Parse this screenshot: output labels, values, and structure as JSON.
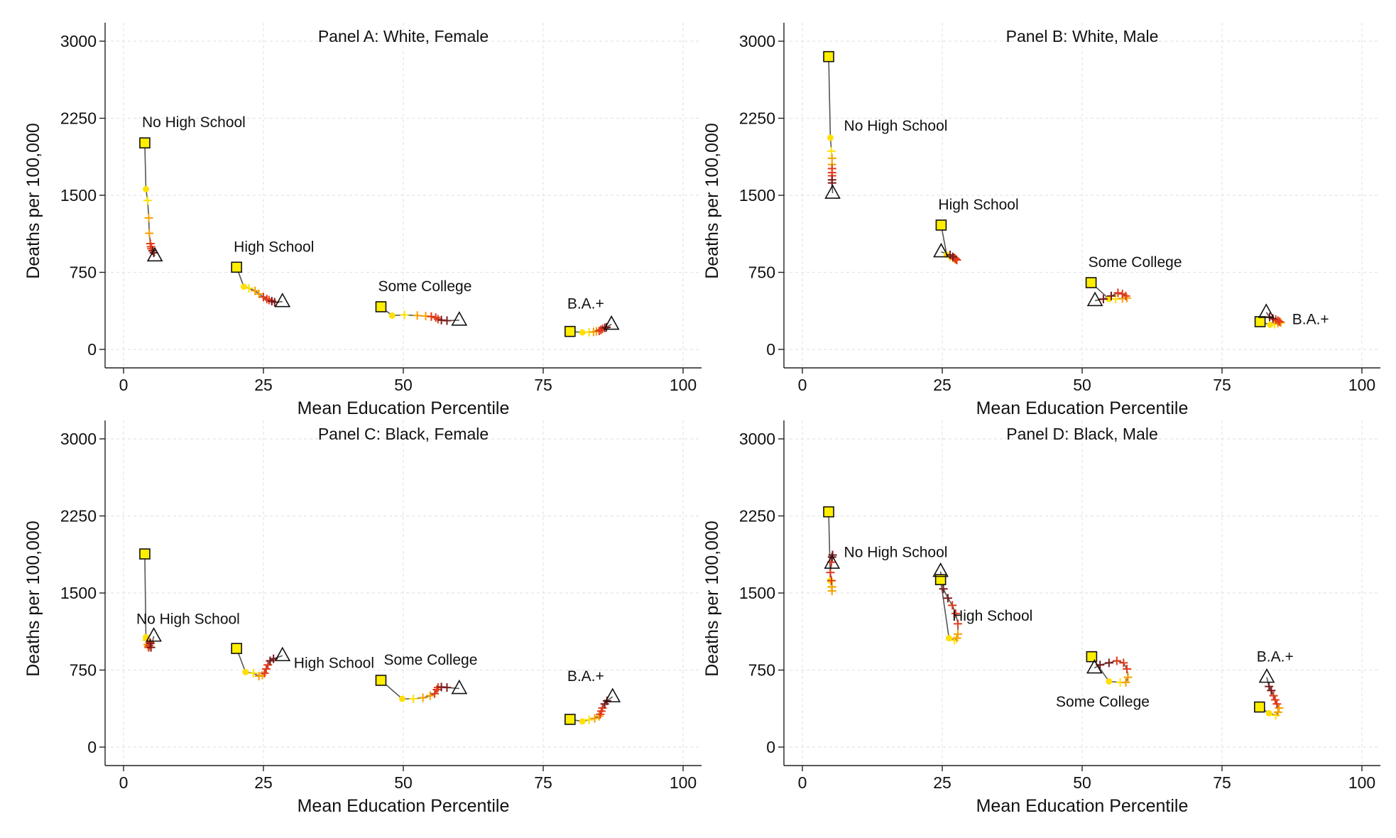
{
  "colors": {
    "start_fill": "#ffee00",
    "line": "#555555",
    "early": "#ffe000",
    "mid": "#f5a000",
    "late": "#e23a1a",
    "final": "#7a1a1a"
  },
  "chart_data": [
    {
      "type": "scatter",
      "title": "Panel A: White, Female",
      "xlabel": "Mean Education Percentile",
      "ylabel": "Deaths per 100,000",
      "xlim": [
        0,
        100
      ],
      "ylim": [
        0,
        3000
      ],
      "xticks": [
        "0",
        "25",
        "50",
        "75",
        "100"
      ],
      "yticks": [
        "0",
        "750",
        "1500",
        "2250",
        "3000"
      ],
      "grid": true,
      "series": [
        {
          "name": "No High School",
          "label_anchor": "above",
          "x": [
            3.8,
            4.0,
            4.3,
            4.5,
            4.6,
            4.8,
            4.9,
            5.0,
            5.2,
            5.4,
            5.6
          ],
          "y": [
            2010,
            1560,
            1450,
            1280,
            1130,
            1030,
            1000,
            980,
            960,
            940,
            910
          ]
        },
        {
          "name": "High School",
          "label_anchor": "above",
          "x": [
            20.2,
            21.5,
            22.4,
            23.5,
            24.2,
            25.0,
            25.6,
            26.0,
            26.5,
            27.0,
            28.4
          ],
          "y": [
            800,
            610,
            595,
            570,
            540,
            510,
            490,
            480,
            470,
            460,
            465
          ]
        },
        {
          "name": "Some College",
          "label_anchor": "above",
          "x": [
            46.0,
            48.0,
            50.2,
            52.5,
            54.0,
            55.0,
            55.8,
            56.2,
            56.8,
            57.8,
            60.0
          ],
          "y": [
            415,
            330,
            335,
            330,
            325,
            320,
            310,
            295,
            285,
            280,
            285
          ]
        },
        {
          "name": "B.A.+",
          "label_anchor": "above",
          "x": [
            79.8,
            82.0,
            83.2,
            84.0,
            84.5,
            85.0,
            85.3,
            85.6,
            86.0,
            86.3,
            87.2
          ],
          "y": [
            175,
            165,
            168,
            170,
            175,
            180,
            190,
            200,
            210,
            215,
            245
          ]
        }
      ]
    },
    {
      "type": "scatter",
      "title": "Panel B: White, Male",
      "xlabel": "Mean Education Percentile",
      "ylabel": "Deaths per 100,000",
      "xlim": [
        0,
        100
      ],
      "ylim": [
        0,
        3000
      ],
      "xticks": [
        "0",
        "25",
        "50",
        "75",
        "100"
      ],
      "yticks": [
        "0",
        "750",
        "1500",
        "2250",
        "3000"
      ],
      "grid": true,
      "series": [
        {
          "name": "No High School",
          "label_anchor": "right",
          "x": [
            4.7,
            5.0,
            5.2,
            5.3,
            5.3,
            5.3,
            5.3,
            5.3,
            5.3,
            5.3,
            5.4
          ],
          "y": [
            2850,
            2060,
            1930,
            1860,
            1800,
            1760,
            1720,
            1690,
            1650,
            1620,
            1520
          ]
        },
        {
          "name": "High School",
          "label_anchor": "above",
          "x": [
            24.8,
            25.8,
            26.4,
            26.9,
            27.3,
            27.6,
            27.4,
            27.2,
            26.9,
            26.4,
            24.8
          ],
          "y": [
            1210,
            920,
            900,
            890,
            880,
            870,
            880,
            890,
            900,
            920,
            950
          ]
        },
        {
          "name": "Some College",
          "label_anchor": "above",
          "x": [
            51.6,
            54.8,
            56.0,
            57.2,
            58.0,
            57.8,
            57.2,
            56.4,
            55.2,
            53.8,
            52.3
          ],
          "y": [
            650,
            490,
            490,
            495,
            500,
            520,
            540,
            550,
            520,
            490,
            475
          ]
        },
        {
          "name": "B.A.+",
          "label_anchor": "right",
          "x": [
            81.8,
            83.6,
            84.4,
            85.0,
            85.5,
            85.3,
            85.0,
            84.6,
            84.1,
            83.5,
            82.9
          ],
          "y": [
            270,
            240,
            245,
            255,
            260,
            270,
            280,
            290,
            300,
            315,
            360
          ]
        }
      ]
    },
    {
      "type": "scatter",
      "title": "Panel C: Black, Female",
      "xlabel": "Mean Education Percentile",
      "ylabel": "Deaths per 100,000",
      "xlim": [
        0,
        100
      ],
      "ylim": [
        0,
        3000
      ],
      "xticks": [
        "0",
        "25",
        "50",
        "75",
        "100"
      ],
      "yticks": [
        "0",
        "750",
        "1500",
        "2250",
        "3000"
      ],
      "grid": true,
      "series": [
        {
          "name": "No High School",
          "label_anchor": "above-left",
          "x": [
            3.8,
            4.0,
            4.1,
            4.3,
            4.4,
            4.5,
            4.6,
            4.7,
            4.8,
            4.9,
            5.4
          ],
          "y": [
            1880,
            1070,
            1040,
            1000,
            980,
            970,
            990,
            1020,
            1010,
            970,
            1080
          ]
        },
        {
          "name": "High School",
          "label_anchor": "right",
          "x": [
            20.2,
            21.8,
            23.2,
            24.2,
            24.8,
            25.2,
            25.5,
            25.8,
            26.2,
            26.8,
            28.4
          ],
          "y": [
            960,
            730,
            720,
            690,
            700,
            720,
            760,
            800,
            840,
            860,
            890
          ]
        },
        {
          "name": "Some College",
          "label_anchor": "above-right",
          "x": [
            46.0,
            49.8,
            51.8,
            53.5,
            54.8,
            55.6,
            56.0,
            56.2,
            56.8,
            57.8,
            60.0
          ],
          "y": [
            650,
            470,
            470,
            480,
            500,
            520,
            560,
            580,
            585,
            580,
            570
          ]
        },
        {
          "name": "B.A.+",
          "label_anchor": "above",
          "x": [
            79.8,
            82.0,
            83.2,
            84.2,
            85.0,
            85.2,
            85.4,
            85.6,
            86.0,
            86.4,
            87.4
          ],
          "y": [
            270,
            250,
            265,
            280,
            300,
            320,
            350,
            380,
            420,
            450,
            490
          ]
        }
      ]
    },
    {
      "type": "scatter",
      "title": "Panel D: Black, Male",
      "xlabel": "Mean Education Percentile",
      "ylabel": "Deaths per 100,000",
      "xlim": [
        0,
        100
      ],
      "ylim": [
        0,
        3000
      ],
      "xticks": [
        "0",
        "25",
        "50",
        "75",
        "100"
      ],
      "yticks": [
        "0",
        "750",
        "1500",
        "2250",
        "3000"
      ],
      "grid": true,
      "series": [
        {
          "name": "No High School",
          "label_anchor": "right",
          "x": [
            4.7,
            5.0,
            5.2,
            5.3,
            5.3,
            5.2,
            5.0,
            5.2,
            5.3,
            5.4,
            5.3
          ],
          "y": [
            2290,
            1620,
            1560,
            1520,
            1560,
            1620,
            1700,
            1800,
            1850,
            1870,
            1790
          ]
        },
        {
          "name": "High School",
          "label_anchor": "right",
          "x": [
            24.7,
            26.2,
            27.2,
            27.6,
            27.8,
            27.8,
            27.4,
            26.8,
            26.0,
            25.2,
            24.7
          ],
          "y": [
            1630,
            1060,
            1040,
            1060,
            1100,
            1200,
            1300,
            1380,
            1450,
            1540,
            1710
          ]
        },
        {
          "name": "Some College",
          "label_anchor": "below",
          "x": [
            51.7,
            54.8,
            56.8,
            57.8,
            58.2,
            58.0,
            57.4,
            56.2,
            54.8,
            53.2,
            52.2
          ],
          "y": [
            880,
            640,
            630,
            630,
            680,
            760,
            820,
            840,
            820,
            800,
            770
          ]
        },
        {
          "name": "B.A.+",
          "label_anchor": "above",
          "x": [
            81.7,
            83.4,
            84.6,
            85.0,
            85.2,
            84.8,
            84.5,
            84.2,
            83.8,
            83.4,
            83.0
          ],
          "y": [
            390,
            330,
            310,
            340,
            380,
            420,
            460,
            500,
            550,
            590,
            680
          ]
        }
      ]
    }
  ]
}
